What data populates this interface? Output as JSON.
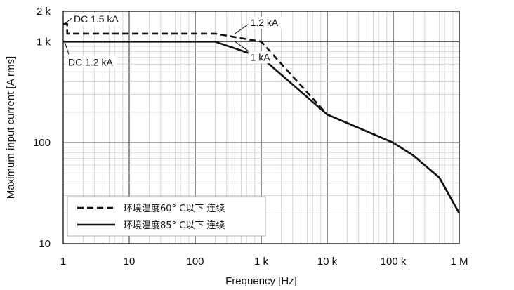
{
  "chart_data": {
    "type": "line",
    "xlabel": "Frequency [Hz]",
    "ylabel": "Maximum input current [A rms]",
    "x_scale": "log",
    "y_scale": "log",
    "xlim": [
      1,
      1000000
    ],
    "ylim": [
      10,
      2000
    ],
    "grid": true,
    "legend_position": "bottom-left",
    "x_ticks": [
      {
        "value": 1,
        "label": "1"
      },
      {
        "value": 10,
        "label": "10"
      },
      {
        "value": 100,
        "label": "100"
      },
      {
        "value": 1000,
        "label": "1 k"
      },
      {
        "value": 10000,
        "label": "10 k"
      },
      {
        "value": 100000,
        "label": "100 k"
      },
      {
        "value": 1000000,
        "label": "1 M"
      }
    ],
    "y_ticks": [
      {
        "value": 10,
        "label": "10"
      },
      {
        "value": 100,
        "label": "100"
      },
      {
        "value": 1000,
        "label": "1 k"
      },
      {
        "value": 2000,
        "label": "2 k"
      }
    ],
    "series": [
      {
        "name": "环境温度60° C以下  连续",
        "style": "dashed",
        "color": "#111111",
        "x": [
          1,
          1,
          1.15,
          1.15,
          200,
          1000,
          10000,
          100000,
          200000,
          500000,
          1000000
        ],
        "y": [
          1500,
          1500,
          1500,
          1200,
          1200,
          1000,
          190,
          100,
          75,
          45,
          20
        ]
      },
      {
        "name": "环境温度85° C以下  连续",
        "style": "solid",
        "color": "#111111",
        "x": [
          1,
          200,
          1000,
          10000,
          100000,
          200000,
          500000,
          1000000
        ],
        "y": [
          1000,
          1000,
          700,
          190,
          100,
          75,
          45,
          20
        ]
      }
    ],
    "annotations": [
      {
        "text": "DC 1.5 kA",
        "x": 1.05,
        "y": 1500,
        "label_at": "right"
      },
      {
        "text": "1.2 kA",
        "x": 400,
        "y": 1200,
        "label_at": "above"
      },
      {
        "text": "1 kA",
        "x": 400,
        "y": 1000,
        "label_at": "below"
      },
      {
        "text": "DC 1.2 kA",
        "x": 1.05,
        "y": 1000,
        "label_at": "below"
      }
    ]
  }
}
